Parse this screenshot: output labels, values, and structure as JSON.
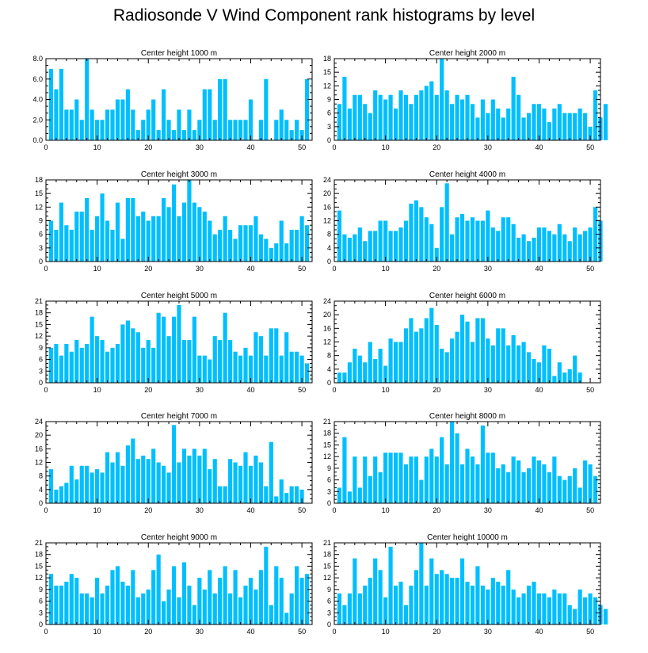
{
  "page": {
    "title": "Radiosonde V Wind Component rank histograms by level"
  },
  "colors": {
    "bar": "#00bfff",
    "axis": "#000000",
    "background": "#ffffff"
  },
  "chart_data": [
    {
      "type": "bar",
      "title": "Center height 1000 m",
      "ylim": [
        0,
        8
      ],
      "yticks": [
        "0.0",
        "2.0",
        "4.0",
        "6.0",
        "8.0"
      ],
      "xlim": [
        0,
        52
      ],
      "xticks": [
        "0",
        "10",
        "20",
        "30",
        "40",
        "50"
      ],
      "x_start": 1,
      "values": [
        7,
        5,
        7,
        3,
        3,
        4,
        2,
        8,
        3,
        2,
        2,
        3,
        3,
        4,
        4,
        5,
        3,
        1,
        2,
        3,
        4,
        1,
        5,
        2,
        1,
        3,
        1,
        3,
        1,
        2,
        5,
        5,
        2,
        6,
        6,
        2,
        2,
        2,
        2,
        4,
        0,
        2,
        6,
        0,
        2,
        3,
        2,
        1,
        2,
        1,
        6
      ]
    },
    {
      "type": "bar",
      "title": "Center height 2000 m",
      "ylim": [
        0,
        18
      ],
      "yticks": [
        "0",
        "3",
        "6",
        "9",
        "12",
        "15",
        "18"
      ],
      "xlim": [
        0,
        52
      ],
      "xticks": [
        "0",
        "10",
        "20",
        "30",
        "40",
        "50"
      ],
      "x_start": 1,
      "values": [
        8,
        14,
        7,
        10,
        10,
        8,
        6,
        11,
        10,
        9,
        10,
        7,
        11,
        10,
        8,
        10,
        11,
        12,
        13,
        10,
        18,
        11,
        8,
        10,
        9,
        10,
        8,
        5,
        9,
        6,
        9,
        7,
        5,
        7,
        14,
        10,
        5,
        6,
        8,
        8,
        7,
        4,
        7,
        8,
        6,
        6,
        6,
        7,
        6,
        3,
        11,
        5,
        8
      ]
    },
    {
      "type": "bar",
      "title": "Center height 3000 m",
      "ylim": [
        0,
        18
      ],
      "yticks": [
        "0",
        "3",
        "6",
        "9",
        "12",
        "15",
        "18"
      ],
      "xlim": [
        0,
        52
      ],
      "xticks": [
        "0",
        "10",
        "20",
        "30",
        "40",
        "50"
      ],
      "x_start": 1,
      "values": [
        9,
        7,
        13,
        8,
        7,
        11,
        11,
        14,
        7,
        10,
        15,
        9,
        7,
        13,
        5,
        14,
        14,
        10,
        11,
        9,
        10,
        10,
        14,
        12,
        17,
        10,
        13,
        18,
        13,
        12,
        11,
        9,
        6,
        7,
        10,
        7,
        5,
        8,
        8,
        8,
        10,
        6,
        5,
        3,
        4,
        9,
        4,
        7,
        7,
        10,
        8
      ]
    },
    {
      "type": "bar",
      "title": "Center height 4000 m",
      "ylim": [
        0,
        24
      ],
      "yticks": [
        "0",
        "4",
        "8",
        "12",
        "16",
        "20",
        "24"
      ],
      "xlim": [
        0,
        52
      ],
      "xticks": [
        "0",
        "10",
        "20",
        "30",
        "40",
        "50"
      ],
      "x_start": 1,
      "values": [
        15,
        8,
        7,
        8,
        10,
        6,
        9,
        9,
        12,
        12,
        9,
        9,
        10,
        12,
        17,
        18,
        16,
        13,
        11,
        4,
        16,
        23,
        8,
        13,
        14,
        12,
        13,
        12,
        12,
        15,
        10,
        9,
        13,
        13,
        11,
        7,
        8,
        6,
        7,
        10,
        10,
        9,
        8,
        11,
        8,
        6,
        10,
        8,
        9,
        10,
        16,
        12
      ]
    },
    {
      "type": "bar",
      "title": "Center height 5000 m",
      "ylim": [
        0,
        21
      ],
      "yticks": [
        "0",
        "3",
        "6",
        "9",
        "12",
        "15",
        "18",
        "21"
      ],
      "xlim": [
        0,
        52
      ],
      "xticks": [
        "0",
        "10",
        "20",
        "30",
        "40",
        "50"
      ],
      "x_start": 1,
      "values": [
        9,
        10,
        7,
        10,
        8,
        11,
        9,
        10,
        17,
        12,
        11,
        8,
        9,
        10,
        15,
        16,
        14,
        13,
        9,
        11,
        9,
        18,
        17,
        12,
        17,
        20,
        11,
        11,
        17,
        7,
        7,
        6,
        12,
        11,
        18,
        11,
        8,
        7,
        9,
        7,
        13,
        12,
        7,
        14,
        14,
        7,
        13,
        8,
        8,
        7,
        5
      ]
    },
    {
      "type": "bar",
      "title": "Center height 6000 m",
      "ylim": [
        0,
        24
      ],
      "yticks": [
        "0",
        "4",
        "8",
        "12",
        "16",
        "20",
        "24"
      ],
      "xlim": [
        0,
        52
      ],
      "xticks": [
        "0",
        "10",
        "20",
        "30",
        "40",
        "50"
      ],
      "x_start": 1,
      "values": [
        3,
        3,
        6,
        10,
        8,
        6,
        12,
        7,
        10,
        5,
        13,
        12,
        12,
        16,
        19,
        15,
        16,
        19,
        22,
        17,
        10,
        9,
        13,
        15,
        20,
        18,
        12,
        19,
        19,
        13,
        11,
        16,
        16,
        11,
        14,
        11,
        12,
        9,
        7,
        6,
        11,
        10,
        2,
        6,
        3,
        4,
        8,
        3
      ]
    },
    {
      "type": "bar",
      "title": "Center height 7000 m",
      "ylim": [
        0,
        24
      ],
      "yticks": [
        "0",
        "4",
        "8",
        "12",
        "16",
        "20",
        "24"
      ],
      "xlim": [
        0,
        52
      ],
      "xticks": [
        "0",
        "10",
        "20",
        "30",
        "40",
        "50"
      ],
      "x_start": 1,
      "values": [
        10,
        4,
        5,
        6,
        11,
        7,
        11,
        11,
        9,
        10,
        9,
        15,
        12,
        15,
        11,
        17,
        19,
        13,
        14,
        13,
        16,
        12,
        11,
        9,
        23,
        12,
        16,
        14,
        16,
        14,
        16,
        10,
        13,
        5,
        5,
        13,
        12,
        11,
        15,
        11,
        14,
        12,
        5,
        18,
        2,
        7,
        3,
        5,
        5,
        4
      ]
    },
    {
      "type": "bar",
      "title": "Center height 8000 m",
      "ylim": [
        0,
        21
      ],
      "yticks": [
        "0",
        "3",
        "6",
        "9",
        "12",
        "15",
        "18",
        "21"
      ],
      "xlim": [
        0,
        52
      ],
      "xticks": [
        "0",
        "10",
        "20",
        "30",
        "40",
        "50"
      ],
      "x_start": 1,
      "values": [
        4,
        17,
        3,
        12,
        4,
        12,
        7,
        12,
        8,
        13,
        13,
        13,
        13,
        10,
        12,
        12,
        6,
        12,
        14,
        12,
        17,
        10,
        21,
        18,
        10,
        14,
        12,
        10,
        20,
        13,
        13,
        9,
        10,
        8,
        12,
        11,
        8,
        9,
        12,
        11,
        10,
        8,
        12,
        7,
        6,
        7,
        9,
        4,
        11,
        10,
        7
      ]
    },
    {
      "type": "bar",
      "title": "Center height 9000 m",
      "ylim": [
        0,
        21
      ],
      "yticks": [
        "0",
        "3",
        "6",
        "9",
        "12",
        "15",
        "18",
        "21"
      ],
      "xlim": [
        0,
        52
      ],
      "xticks": [
        "0",
        "10",
        "20",
        "30",
        "40",
        "50"
      ],
      "x_start": 1,
      "values": [
        13,
        10,
        10,
        11,
        13,
        12,
        8,
        8,
        7,
        12,
        8,
        10,
        14,
        15,
        11,
        10,
        14,
        7,
        8,
        9,
        14,
        18,
        6,
        9,
        15,
        7,
        16,
        10,
        5,
        12,
        9,
        14,
        8,
        12,
        15,
        8,
        14,
        7,
        10,
        12,
        9,
        14,
        20,
        5,
        15,
        12,
        3,
        8,
        15,
        12,
        13
      ]
    },
    {
      "type": "bar",
      "title": "Center height 10000 m",
      "ylim": [
        0,
        21
      ],
      "yticks": [
        "0",
        "3",
        "6",
        "9",
        "12",
        "15",
        "18",
        "21"
      ],
      "xlim": [
        0,
        52
      ],
      "xticks": [
        "0",
        "10",
        "20",
        "30",
        "40",
        "50"
      ],
      "x_start": 1,
      "values": [
        8,
        5,
        8,
        17,
        8,
        10,
        12,
        17,
        14,
        7,
        20,
        10,
        11,
        5,
        10,
        14,
        21,
        10,
        17,
        13,
        14,
        13,
        12,
        12,
        17,
        11,
        10,
        15,
        10,
        9,
        12,
        11,
        10,
        14,
        9,
        7,
        8,
        10,
        11,
        8,
        8,
        7,
        9,
        8,
        8,
        5,
        4,
        9,
        7,
        8,
        7,
        5,
        4
      ]
    }
  ]
}
